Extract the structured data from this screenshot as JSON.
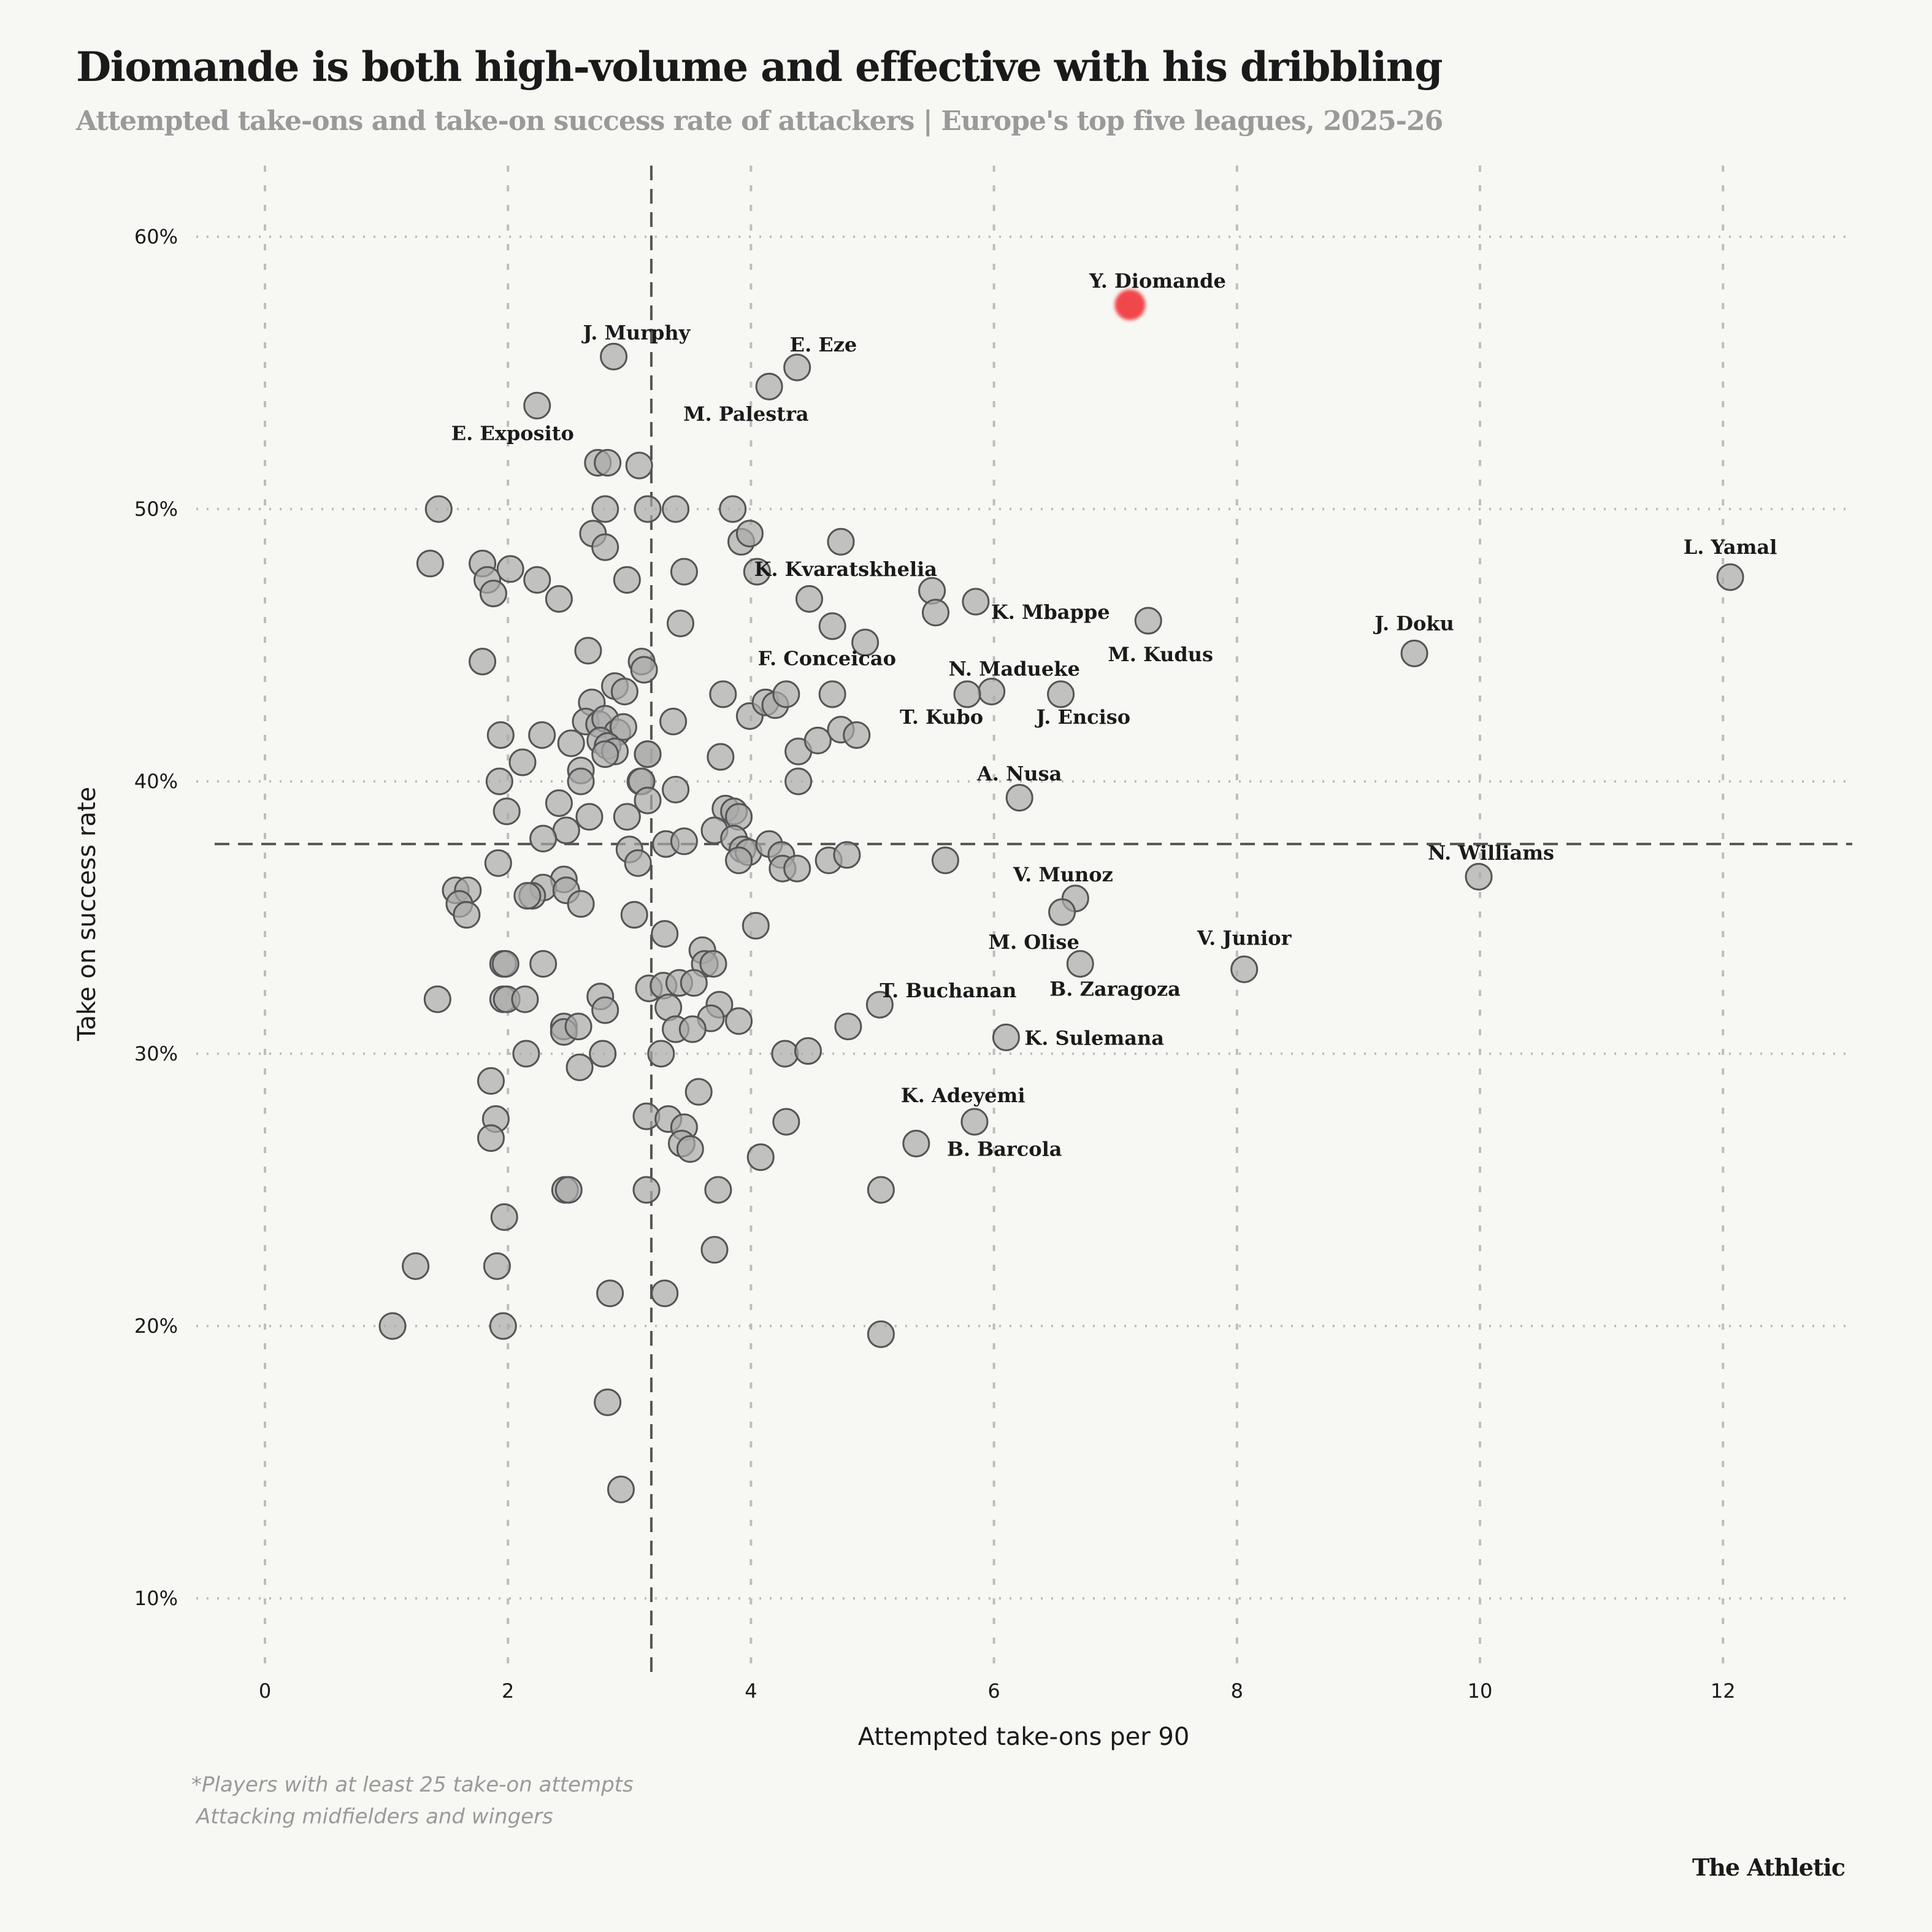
{
  "header": {
    "title": "Diomande is both high-volume and effective with his dribbling",
    "subtitle": "Attempted take-ons and take-on success rate of attackers | Europe's top five leagues, 2025-26"
  },
  "footer": {
    "note_line1": "*Players with at least 25 take-on attempts",
    "note_line2": "Attacking midfielders and wingers",
    "brand": "The Athletic"
  },
  "colors": {
    "background": "#f7f7f3",
    "point_fill": "#a9a9a9",
    "point_stroke": "#555555",
    "highlight": "#f0464b",
    "grid": "#bdbdbd",
    "median_line": "#555555"
  },
  "chart_data": {
    "type": "scatter",
    "title": "Diomande is both high-volume and effective with his dribbling",
    "subtitle": "Attempted take-ons and take-on success rate of attackers | Europe's top five leagues, 2025-26",
    "xlabel": "Attempted take-ons per 90",
    "ylabel": "Take on success rate",
    "xlim": [
      -0.6,
      13.1
    ],
    "ylim": [
      8,
      62
    ],
    "x_ticks": [
      0,
      2,
      4,
      6,
      8,
      10,
      12
    ],
    "x_tick_labels": [
      "0",
      "2",
      "4",
      "6",
      "8",
      "10",
      "12"
    ],
    "y_ticks": [
      10,
      20,
      30,
      40,
      50,
      60
    ],
    "y_tick_labels": [
      "10%",
      "20%",
      "30%",
      "40%",
      "50%",
      "60%"
    ],
    "grid": true,
    "reference_lines": {
      "x_median": 3.18,
      "y_median": 37.7
    },
    "highlight": {
      "name": "Y. Diomande",
      "x": 7.12,
      "y": 57.5
    },
    "labeled_points": [
      {
        "name": "L. Yamal",
        "x": 12.06,
        "y": 47.5
      },
      {
        "name": "J. Doku",
        "x": 9.46,
        "y": 44.7
      },
      {
        "name": "N. Williams",
        "x": 9.99,
        "y": 36.5
      },
      {
        "name": "V. Junior",
        "x": 8.06,
        "y": 33.1
      },
      {
        "name": "M. Kudus",
        "x": 7.27,
        "y": 45.9
      },
      {
        "name": "K. Mbappe",
        "x": 5.85,
        "y": 46.6
      },
      {
        "name": "K. Kvaratskhelia",
        "x": 5.49,
        "y": 47.0
      },
      {
        "name": "F. Conceicao",
        "x": 5.52,
        "y": 46.2
      },
      {
        "name": "N. Madueke",
        "x": 5.98,
        "y": 43.3
      },
      {
        "name": "T. Kubo",
        "x": 5.78,
        "y": 43.2
      },
      {
        "name": "J. Enciso",
        "x": 6.55,
        "y": 43.2
      },
      {
        "name": "A. Nusa",
        "x": 6.21,
        "y": 39.4
      },
      {
        "name": "V. Munoz",
        "x": 6.67,
        "y": 35.7
      },
      {
        "name": "M. Olise",
        "x": 6.56,
        "y": 35.2
      },
      {
        "name": "B. Zaragoza",
        "x": 6.71,
        "y": 33.3
      },
      {
        "name": "T. Buchanan",
        "x": 5.06,
        "y": 31.8
      },
      {
        "name": "K. Sulemana",
        "x": 6.1,
        "y": 30.6
      },
      {
        "name": "K. Adeyemi",
        "x": 5.84,
        "y": 27.5
      },
      {
        "name": "B. Barcola",
        "x": 5.36,
        "y": 26.7
      },
      {
        "name": "J. Murphy",
        "x": 2.87,
        "y": 55.6
      },
      {
        "name": "E. Eze",
        "x": 4.38,
        "y": 55.2
      },
      {
        "name": "M. Palestra",
        "x": 4.15,
        "y": 54.5
      },
      {
        "name": "E. Exposito",
        "x": 2.24,
        "y": 53.8
      }
    ],
    "points": [
      {
        "x": 1.43,
        "y": 50.0
      },
      {
        "x": 1.36,
        "y": 48.0
      },
      {
        "x": 1.79,
        "y": 48.0
      },
      {
        "x": 1.83,
        "y": 47.4
      },
      {
        "x": 1.88,
        "y": 46.9
      },
      {
        "x": 2.02,
        "y": 47.8
      },
      {
        "x": 2.24,
        "y": 47.4
      },
      {
        "x": 2.42,
        "y": 46.7
      },
      {
        "x": 2.74,
        "y": 51.7
      },
      {
        "x": 2.82,
        "y": 51.7
      },
      {
        "x": 3.08,
        "y": 51.6
      },
      {
        "x": 2.8,
        "y": 50.0
      },
      {
        "x": 3.15,
        "y": 50.0
      },
      {
        "x": 3.38,
        "y": 50.0
      },
      {
        "x": 3.85,
        "y": 50.0
      },
      {
        "x": 2.7,
        "y": 49.1
      },
      {
        "x": 2.8,
        "y": 48.6
      },
      {
        "x": 2.98,
        "y": 47.4
      },
      {
        "x": 3.45,
        "y": 47.7
      },
      {
        "x": 3.42,
        "y": 45.8
      },
      {
        "x": 3.92,
        "y": 48.8
      },
      {
        "x": 3.99,
        "y": 49.1
      },
      {
        "x": 4.05,
        "y": 47.7
      },
      {
        "x": 4.74,
        "y": 48.8
      },
      {
        "x": 4.48,
        "y": 46.7
      },
      {
        "x": 4.67,
        "y": 45.7
      },
      {
        "x": 4.94,
        "y": 45.1
      },
      {
        "x": 1.79,
        "y": 44.4
      },
      {
        "x": 2.66,
        "y": 44.8
      },
      {
        "x": 3.1,
        "y": 44.4
      },
      {
        "x": 3.12,
        "y": 44.1
      },
      {
        "x": 2.88,
        "y": 43.5
      },
      {
        "x": 2.96,
        "y": 43.3
      },
      {
        "x": 2.69,
        "y": 42.9
      },
      {
        "x": 2.64,
        "y": 42.2
      },
      {
        "x": 2.75,
        "y": 42.1
      },
      {
        "x": 2.8,
        "y": 42.3
      },
      {
        "x": 2.9,
        "y": 41.8
      },
      {
        "x": 2.95,
        "y": 42.0
      },
      {
        "x": 2.76,
        "y": 41.5
      },
      {
        "x": 2.82,
        "y": 41.3
      },
      {
        "x": 2.88,
        "y": 41.1
      },
      {
        "x": 2.8,
        "y": 41.0
      },
      {
        "x": 3.15,
        "y": 41.0
      },
      {
        "x": 3.15,
        "y": 41.0
      },
      {
        "x": 2.52,
        "y": 41.4
      },
      {
        "x": 2.28,
        "y": 41.7
      },
      {
        "x": 1.94,
        "y": 41.7
      },
      {
        "x": 2.12,
        "y": 40.7
      },
      {
        "x": 2.6,
        "y": 40.4
      },
      {
        "x": 2.6,
        "y": 40.0
      },
      {
        "x": 1.93,
        "y": 40.0
      },
      {
        "x": 3.09,
        "y": 40.0
      },
      {
        "x": 3.1,
        "y": 40.0
      },
      {
        "x": 3.38,
        "y": 39.7
      },
      {
        "x": 3.15,
        "y": 39.3
      },
      {
        "x": 2.42,
        "y": 39.2
      },
      {
        "x": 1.99,
        "y": 38.9
      },
      {
        "x": 3.36,
        "y": 42.2
      },
      {
        "x": 3.77,
        "y": 43.2
      },
      {
        "x": 3.99,
        "y": 42.4
      },
      {
        "x": 4.12,
        "y": 42.9
      },
      {
        "x": 4.2,
        "y": 42.8
      },
      {
        "x": 4.29,
        "y": 43.2
      },
      {
        "x": 4.67,
        "y": 43.2
      },
      {
        "x": 4.39,
        "y": 41.1
      },
      {
        "x": 4.55,
        "y": 41.5
      },
      {
        "x": 4.74,
        "y": 41.9
      },
      {
        "x": 4.87,
        "y": 41.7
      },
      {
        "x": 4.39,
        "y": 40.0
      },
      {
        "x": 3.75,
        "y": 40.9
      },
      {
        "x": 2.67,
        "y": 38.7
      },
      {
        "x": 2.98,
        "y": 38.7
      },
      {
        "x": 2.48,
        "y": 38.2
      },
      {
        "x": 2.29,
        "y": 37.9
      },
      {
        "x": 3.0,
        "y": 37.5
      },
      {
        "x": 3.07,
        "y": 37.0
      },
      {
        "x": 3.3,
        "y": 37.7
      },
      {
        "x": 3.45,
        "y": 37.8
      },
      {
        "x": 3.79,
        "y": 39.0
      },
      {
        "x": 3.86,
        "y": 38.9
      },
      {
        "x": 3.9,
        "y": 38.7
      },
      {
        "x": 3.7,
        "y": 38.2
      },
      {
        "x": 3.86,
        "y": 37.9
      },
      {
        "x": 3.93,
        "y": 37.5
      },
      {
        "x": 3.98,
        "y": 37.4
      },
      {
        "x": 3.9,
        "y": 37.1
      },
      {
        "x": 4.15,
        "y": 37.7
      },
      {
        "x": 4.25,
        "y": 37.3
      },
      {
        "x": 4.26,
        "y": 36.8
      },
      {
        "x": 4.38,
        "y": 36.8
      },
      {
        "x": 4.64,
        "y": 37.1
      },
      {
        "x": 4.79,
        "y": 37.3
      },
      {
        "x": 5.6,
        "y": 37.1
      },
      {
        "x": 1.92,
        "y": 37.0
      },
      {
        "x": 2.46,
        "y": 36.4
      },
      {
        "x": 2.29,
        "y": 36.1
      },
      {
        "x": 2.2,
        "y": 35.8
      },
      {
        "x": 2.16,
        "y": 35.8
      },
      {
        "x": 2.48,
        "y": 36.0
      },
      {
        "x": 2.6,
        "y": 35.5
      },
      {
        "x": 1.57,
        "y": 36.0
      },
      {
        "x": 1.67,
        "y": 36.0
      },
      {
        "x": 1.6,
        "y": 35.5
      },
      {
        "x": 1.66,
        "y": 35.1
      },
      {
        "x": 3.04,
        "y": 35.1
      },
      {
        "x": 4.04,
        "y": 34.7
      },
      {
        "x": 1.96,
        "y": 33.3
      },
      {
        "x": 1.98,
        "y": 33.3
      },
      {
        "x": 2.29,
        "y": 33.3
      },
      {
        "x": 3.29,
        "y": 34.4
      },
      {
        "x": 3.6,
        "y": 33.8
      },
      {
        "x": 3.62,
        "y": 33.3
      },
      {
        "x": 3.69,
        "y": 33.3
      },
      {
        "x": 1.42,
        "y": 32.0
      },
      {
        "x": 1.96,
        "y": 32.0
      },
      {
        "x": 1.99,
        "y": 32.0
      },
      {
        "x": 2.14,
        "y": 32.0
      },
      {
        "x": 2.76,
        "y": 32.1
      },
      {
        "x": 2.8,
        "y": 31.6
      },
      {
        "x": 3.16,
        "y": 32.4
      },
      {
        "x": 3.28,
        "y": 32.5
      },
      {
        "x": 3.41,
        "y": 32.6
      },
      {
        "x": 3.53,
        "y": 32.6
      },
      {
        "x": 3.32,
        "y": 31.7
      },
      {
        "x": 3.74,
        "y": 31.8
      },
      {
        "x": 3.67,
        "y": 31.3
      },
      {
        "x": 3.9,
        "y": 31.2
      },
      {
        "x": 3.38,
        "y": 30.9
      },
      {
        "x": 3.52,
        "y": 30.9
      },
      {
        "x": 2.46,
        "y": 31.0
      },
      {
        "x": 2.46,
        "y": 30.8
      },
      {
        "x": 2.58,
        "y": 31.0
      },
      {
        "x": 2.15,
        "y": 30.0
      },
      {
        "x": 2.78,
        "y": 30.0
      },
      {
        "x": 3.26,
        "y": 30.0
      },
      {
        "x": 2.59,
        "y": 29.5
      },
      {
        "x": 4.28,
        "y": 30.0
      },
      {
        "x": 4.47,
        "y": 30.1
      },
      {
        "x": 4.8,
        "y": 31.0
      },
      {
        "x": 1.86,
        "y": 29.0
      },
      {
        "x": 1.9,
        "y": 27.6
      },
      {
        "x": 1.86,
        "y": 26.9
      },
      {
        "x": 3.57,
        "y": 28.6
      },
      {
        "x": 3.14,
        "y": 27.7
      },
      {
        "x": 3.32,
        "y": 27.6
      },
      {
        "x": 3.45,
        "y": 27.3
      },
      {
        "x": 3.43,
        "y": 26.7
      },
      {
        "x": 3.5,
        "y": 26.5
      },
      {
        "x": 4.29,
        "y": 27.5
      },
      {
        "x": 4.08,
        "y": 26.2
      },
      {
        "x": 2.47,
        "y": 25.0
      },
      {
        "x": 2.5,
        "y": 25.0
      },
      {
        "x": 3.14,
        "y": 25.0
      },
      {
        "x": 3.73,
        "y": 25.0
      },
      {
        "x": 5.07,
        "y": 25.0
      },
      {
        "x": 1.97,
        "y": 24.0
      },
      {
        "x": 3.7,
        "y": 22.8
      },
      {
        "x": 1.24,
        "y": 22.2
      },
      {
        "x": 1.91,
        "y": 22.2
      },
      {
        "x": 2.84,
        "y": 21.2
      },
      {
        "x": 3.29,
        "y": 21.2
      },
      {
        "x": 1.05,
        "y": 20.0
      },
      {
        "x": 1.96,
        "y": 20.0
      },
      {
        "x": 5.07,
        "y": 19.7
      },
      {
        "x": 2.82,
        "y": 17.2
      },
      {
        "x": 2.93,
        "y": 14.0
      }
    ]
  }
}
